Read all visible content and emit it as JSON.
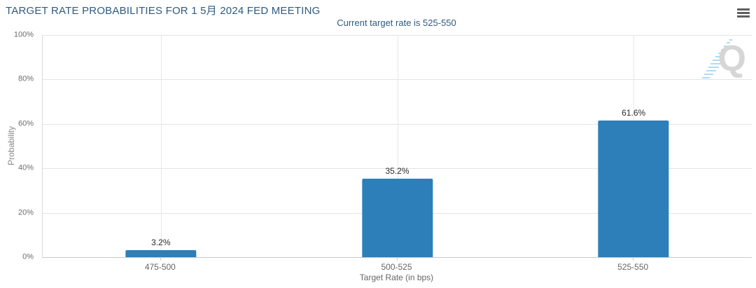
{
  "header": {
    "title": "TARGET RATE PROBABILITIES FOR 1 5月 2024 FED MEETING",
    "subtitle": "Current target rate is 525-550"
  },
  "menu": {
    "tooltip": "Chart context menu"
  },
  "watermark": {
    "letter": "Q"
  },
  "colors": {
    "title_text": "#2f5a80",
    "bar_fill": "#2c7fb8",
    "axis_text": "#666666",
    "ytick_text": "#6b6b6b",
    "data_label_text": "#2b2b2b",
    "gridline": "#e4e4e4",
    "axis_line": "#c9c9c9",
    "menu_icon": "#5f5f5f",
    "watermark_gray": "#d6d6d6",
    "watermark_blue": "#aedcf5"
  },
  "chart_data": {
    "type": "bar",
    "title": "TARGET RATE PROBABILITIES FOR 1 5月 2024 FED MEETING",
    "subtitle": "Current target rate is 525-550",
    "categories": [
      "475-500",
      "500-525",
      "525-550"
    ],
    "values": [
      3.2,
      35.2,
      61.6
    ],
    "data_labels": [
      "3.2%",
      "35.2%",
      "61.6%"
    ],
    "xlabel": "Target Rate (in bps)",
    "ylabel": "Probability",
    "ylim": [
      0,
      100
    ],
    "yticks": [
      0,
      20,
      40,
      60,
      80,
      100
    ],
    "ytick_labels": [
      "0%",
      "20%",
      "40%",
      "60%",
      "80%",
      "100%"
    ],
    "grid": true,
    "legend": false,
    "bar_color": "#2c7fb8"
  }
}
